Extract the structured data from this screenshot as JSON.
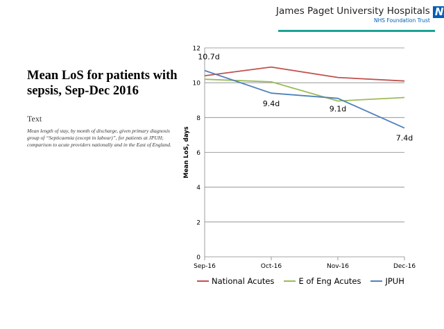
{
  "header": {
    "org_name": "James Paget University Hospitals",
    "org_sub": "NHS Foundation Trust",
    "logo_text": "NHS"
  },
  "slide": {
    "title": "Mean LoS for patients with sepsis, Sep-Dec 2016",
    "section_heading": "Text",
    "description": "Mean length of stay, by month of discharge, given primary diagnosis group of “Septicaemia (except in labour)”, for patients at JPUH; comparison to acute providers nationally and in the East of England."
  },
  "colors": {
    "national": "#c0504d",
    "east": "#9bbb59",
    "jpuh": "#4f81bd",
    "nhs_blue": "#005eb8",
    "rule": "#1aa394"
  },
  "chart_data": {
    "type": "line",
    "title": "",
    "xlabel": "",
    "ylabel": "Mean LoS, days",
    "categories": [
      "Sep-16",
      "Oct-16",
      "Nov-16",
      "Dec-16"
    ],
    "ylim": [
      0,
      12
    ],
    "yticks": [
      0,
      2,
      4,
      6,
      8,
      10,
      12
    ],
    "grid": true,
    "legend_position": "bottom",
    "series": [
      {
        "name": "National Acutes",
        "color": "#c0504d",
        "values": [
          10.4,
          10.9,
          10.3,
          10.1
        ]
      },
      {
        "name": "E of Eng Acutes",
        "color": "#9bbb59",
        "values": [
          10.2,
          10.05,
          8.95,
          9.15
        ]
      },
      {
        "name": "JPUH",
        "color": "#4f81bd",
        "values": [
          10.7,
          9.4,
          9.1,
          7.4
        ],
        "data_labels": [
          "10.7d",
          "9.4d",
          "9.1d",
          "7.4d"
        ]
      }
    ]
  }
}
